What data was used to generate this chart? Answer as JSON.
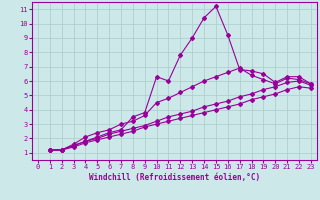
{
  "xlabel": "Windchill (Refroidissement éolien,°C)",
  "bg_color": "#cce8e8",
  "line_color": "#990099",
  "grid_color": "#aacccc",
  "xlim": [
    -0.5,
    23.5
  ],
  "ylim": [
    0.5,
    11.5
  ],
  "xticks": [
    0,
    1,
    2,
    3,
    4,
    5,
    6,
    7,
    8,
    9,
    10,
    11,
    12,
    13,
    14,
    15,
    16,
    17,
    18,
    19,
    20,
    21,
    22,
    23
  ],
  "yticks": [
    1,
    2,
    3,
    4,
    5,
    6,
    7,
    8,
    9,
    10,
    11
  ],
  "series": [
    [
      1.2,
      1.2,
      1.5,
      1.8,
      2.1,
      2.4,
      2.6,
      3.5,
      3.8,
      6.3,
      6.0,
      7.8,
      9.0,
      10.4,
      11.2,
      9.2,
      6.8,
      6.7,
      6.5,
      5.9,
      6.3,
      6.3,
      5.8
    ],
    [
      1.2,
      1.2,
      1.6,
      2.1,
      2.4,
      2.6,
      3.0,
      3.2,
      3.6,
      4.5,
      4.8,
      5.2,
      5.6,
      6.0,
      6.3,
      6.6,
      6.9,
      6.4,
      6.1,
      5.8,
      6.2,
      6.1,
      5.8
    ],
    [
      1.2,
      1.2,
      1.5,
      1.8,
      2.0,
      2.3,
      2.5,
      2.7,
      2.9,
      3.2,
      3.5,
      3.7,
      3.9,
      4.2,
      4.4,
      4.6,
      4.9,
      5.1,
      5.4,
      5.6,
      5.9,
      6.0,
      5.7
    ],
    [
      1.2,
      1.2,
      1.4,
      1.7,
      1.9,
      2.1,
      2.3,
      2.5,
      2.8,
      3.0,
      3.2,
      3.4,
      3.6,
      3.8,
      4.0,
      4.2,
      4.4,
      4.7,
      4.9,
      5.1,
      5.4,
      5.6,
      5.5
    ]
  ],
  "tick_fontsize": 5.0,
  "xlabel_fontsize": 5.5
}
